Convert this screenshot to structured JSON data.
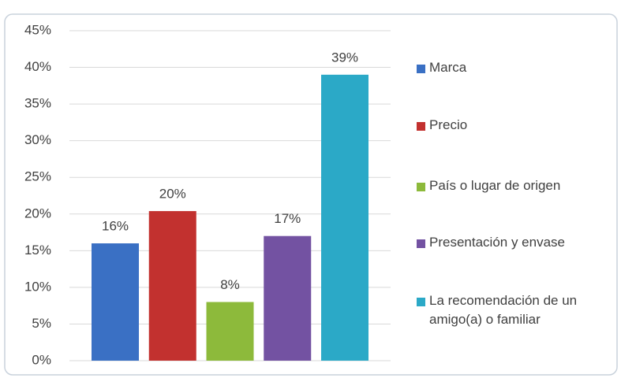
{
  "chart_data": {
    "type": "bar",
    "categories": [
      "Marca",
      "Precio",
      "País o lugar de origen",
      "Presentación y envase",
      "La recomendación de un amigo(a) o familiar"
    ],
    "values": [
      16,
      20.4,
      8,
      17,
      39
    ],
    "value_labels": [
      "16%",
      "20%",
      "8%",
      "17%",
      "39%"
    ],
    "colors": [
      "#3a70c4",
      "#c2312f",
      "#8dba3b",
      "#7352a2",
      "#2ba9c7"
    ],
    "ylim": [
      0,
      45
    ],
    "yticks": [
      {
        "value": 0,
        "label": "0%"
      },
      {
        "value": 5,
        "label": "5%"
      },
      {
        "value": 10,
        "label": "10%"
      },
      {
        "value": 15,
        "label": "15%"
      },
      {
        "value": 20,
        "label": "20%"
      },
      {
        "value": 25,
        "label": "25%"
      },
      {
        "value": 30,
        "label": "30%"
      },
      {
        "value": 35,
        "label": "35%"
      },
      {
        "value": 40,
        "label": "40%"
      },
      {
        "value": 45,
        "label": "45%"
      }
    ],
    "grid": true,
    "legend": "right"
  }
}
